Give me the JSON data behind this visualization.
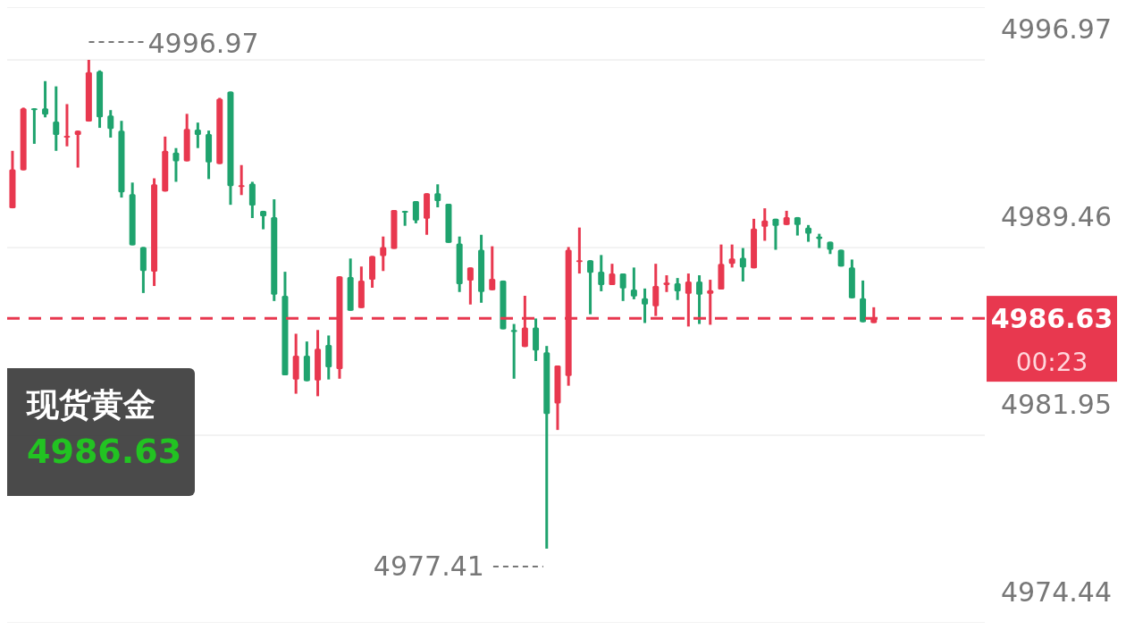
{
  "chart_data": {
    "type": "candlestick",
    "title": "现货黄金",
    "subtitle": "4986.63",
    "categories": [
      null,
      null,
      null,
      null,
      null,
      null,
      null,
      null,
      null,
      null,
      null,
      null,
      null,
      null,
      null,
      null,
      null,
      null,
      null,
      null,
      null,
      null,
      null,
      null,
      null,
      null,
      null,
      null,
      null,
      null,
      null,
      null,
      null,
      null,
      null,
      null,
      null,
      null,
      null,
      null,
      null,
      null,
      null,
      null,
      null,
      null,
      null,
      null,
      null,
      null,
      null,
      null,
      null,
      null,
      null,
      null,
      null,
      null,
      null,
      null,
      null,
      null,
      null,
      null,
      null,
      null,
      null,
      null,
      null,
      null,
      null,
      null,
      null,
      null,
      null,
      null,
      null,
      null,
      null,
      null
    ],
    "ohlc": [
      [
        4991.03,
        4993.33,
        4991.03,
        4992.59
      ],
      [
        4992.55,
        4995.06,
        4992.55,
        4995.03
      ],
      [
        4995.03,
        4995.03,
        4993.61,
        4994.99
      ],
      [
        4995.03,
        4996.12,
        4994.67,
        4994.78
      ],
      [
        4994.5,
        4995.91,
        4993.33,
        4993.97
      ],
      [
        4993.86,
        4995.2,
        4993.51,
        4993.93
      ],
      [
        4993.97,
        4994.14,
        4992.66,
        4994.14
      ],
      [
        4994.5,
        4996.97,
        4994.5,
        4996.48
      ],
      [
        4996.51,
        4996.55,
        4994.25,
        4994.67
      ],
      [
        4994.74,
        4994.96,
        4993.86,
        4994.21
      ],
      [
        4994.14,
        4994.53,
        4991.46,
        4991.67
      ],
      [
        4991.6,
        4992.06,
        4989.55,
        4989.55
      ],
      [
        4989.48,
        4989.48,
        4987.64,
        4988.52
      ],
      [
        4988.49,
        4992.23,
        4987.92,
        4991.99
      ],
      [
        4991.7,
        4993.9,
        4991.7,
        4993.33
      ],
      [
        4993.26,
        4993.44,
        4992.09,
        4992.91
      ],
      [
        4992.91,
        4994.81,
        4992.91,
        4994.21
      ],
      [
        4994.18,
        4994.46,
        4993.44,
        4993.97
      ],
      [
        4994.0,
        4994.14,
        4992.2,
        4992.87
      ],
      [
        4992.8,
        4995.45,
        4992.8,
        4995.41
      ],
      [
        4995.7,
        4995.7,
        4991.17,
        4991.92
      ],
      [
        4991.88,
        4992.76,
        4991.56,
        4991.95
      ],
      [
        4992.02,
        4992.09,
        4990.64,
        4991.14
      ],
      [
        4990.93,
        4990.93,
        4990.19,
        4990.71
      ],
      [
        4990.68,
        4991.39,
        4987.32,
        4987.57
      ],
      [
        4987.53,
        4988.49,
        4984.35,
        4984.35
      ],
      [
        4984.18,
        4986.01,
        4983.61,
        4985.13
      ],
      [
        4985.13,
        4985.7,
        4984.11,
        4984.11
      ],
      [
        4984.14,
        4986.16,
        4983.51,
        4985.41
      ],
      [
        4985.56,
        4985.94,
        4984.18,
        4984.67
      ],
      [
        4984.6,
        4988.31,
        4984.21,
        4988.31
      ],
      [
        4988.28,
        4989.02,
        4986.93,
        4986.93
      ],
      [
        4987.04,
        4988.7,
        4987.04,
        4988.14
      ],
      [
        4988.17,
        4989.12,
        4987.85,
        4989.12
      ],
      [
        4989.12,
        4989.9,
        4988.52,
        4989.48
      ],
      [
        4989.41,
        4990.96,
        4989.41,
        4990.96
      ],
      [
        4990.93,
        4990.93,
        4990.33,
        4990.86
      ],
      [
        4991.32,
        4991.32,
        4990.43,
        4990.54
      ],
      [
        4990.61,
        4991.63,
        4989.97,
        4991.63
      ],
      [
        4991.63,
        4991.99,
        4991.07,
        4991.32
      ],
      [
        4991.21,
        4991.21,
        4989.65,
        4989.65
      ],
      [
        4989.62,
        4989.9,
        4987.68,
        4987.99
      ],
      [
        4988.14,
        4988.66,
        4987.18,
        4988.66
      ],
      [
        4989.37,
        4989.97,
        4987.25,
        4987.68
      ],
      [
        4987.75,
        4989.51,
        4987.75,
        4988.21
      ],
      [
        4988.14,
        4988.14,
        4986.19,
        4986.19
      ],
      [
        4986.16,
        4986.4,
        4984.21,
        4986.08
      ],
      [
        4985.48,
        4987.53,
        4985.48,
        4986.26
      ],
      [
        4986.26,
        4986.62,
        4984.92,
        4985.34
      ],
      [
        4985.27,
        4985.52,
        4977.41,
        4982.8
      ],
      [
        4983.22,
        4984.74,
        4982.16,
        4984.74
      ],
      [
        4984.32,
        4989.48,
        4983.93,
        4989.37
      ],
      [
        4988.88,
        4990.26,
        4988.42,
        4988.95
      ],
      [
        4988.95,
        4988.95,
        4986.79,
        4988.45
      ],
      [
        4988.49,
        4989.16,
        4987.71,
        4987.96
      ],
      [
        4987.96,
        4988.81,
        4987.96,
        4988.42
      ],
      [
        4988.42,
        4988.42,
        4987.32,
        4987.82
      ],
      [
        4987.78,
        4988.66,
        4987.39,
        4987.5
      ],
      [
        4987.43,
        4987.82,
        4986.44,
        4987.18
      ],
      [
        4987.11,
        4988.81,
        4986.72,
        4987.92
      ],
      [
        4987.96,
        4988.35,
        4987.68,
        4988.06
      ],
      [
        4988.03,
        4988.24,
        4987.36,
        4987.71
      ],
      [
        4987.61,
        4988.42,
        4986.3,
        4988.1
      ],
      [
        4988.1,
        4988.35,
        4986.4,
        4987.57
      ],
      [
        4987.61,
        4988.17,
        4986.37,
        4987.75
      ],
      [
        4987.78,
        4989.58,
        4987.78,
        4988.81
      ],
      [
        4988.81,
        4989.58,
        4988.66,
        4989.02
      ],
      [
        4989.05,
        4989.44,
        4988.1,
        4988.66
      ],
      [
        4988.63,
        4990.61,
        4988.63,
        4990.22
      ],
      [
        4990.29,
        4991.03,
        4989.73,
        4990.54
      ],
      [
        4990.61,
        4990.61,
        4989.37,
        4990.33
      ],
      [
        4990.36,
        4990.93,
        4990.36,
        4990.68
      ],
      [
        4990.68,
        4990.68,
        4989.94,
        4990.36
      ],
      [
        4990.26,
        4990.36,
        4989.69,
        4990.01
      ],
      [
        4989.9,
        4990.01,
        4989.44,
        4989.8
      ],
      [
        4989.69,
        4989.69,
        4989.2,
        4989.37
      ],
      [
        4989.37,
        4989.37,
        4988.7,
        4988.7
      ],
      [
        4988.66,
        4988.98,
        4987.43,
        4987.43
      ],
      [
        4987.43,
        4988.14,
        4986.47,
        4986.47
      ],
      [
        4986.44,
        4987.07,
        4986.44,
        4986.63
      ]
    ],
    "colors": [
      "#e8384f",
      "#e8384f",
      "#1fa36e",
      "#1fa36e",
      "#1fa36e",
      "#e8384f",
      "#e8384f",
      "#e8384f",
      "#1fa36e",
      "#1fa36e",
      "#1fa36e",
      "#1fa36e",
      "#1fa36e",
      "#e8384f",
      "#e8384f",
      "#1fa36e",
      "#e8384f",
      "#1fa36e",
      "#1fa36e",
      "#e8384f",
      "#1fa36e",
      "#e8384f",
      "#1fa36e",
      "#1fa36e",
      "#1fa36e",
      "#1fa36e",
      "#e8384f",
      "#1fa36e",
      "#e8384f",
      "#1fa36e",
      "#e8384f",
      "#1fa36e",
      "#e8384f",
      "#e8384f",
      "#e8384f",
      "#e8384f",
      "#1fa36e",
      "#1fa36e",
      "#e8384f",
      "#1fa36e",
      "#1fa36e",
      "#1fa36e",
      "#e8384f",
      "#1fa36e",
      "#e8384f",
      "#1fa36e",
      "#1fa36e",
      "#e8384f",
      "#1fa36e",
      "#1fa36e",
      "#e8384f",
      "#e8384f",
      "#e8384f",
      "#1fa36e",
      "#1fa36e",
      "#e8384f",
      "#1fa36e",
      "#1fa36e",
      "#1fa36e",
      "#e8384f",
      "#e8384f",
      "#1fa36e",
      "#e8384f",
      "#1fa36e",
      "#e8384f",
      "#e8384f",
      "#e8384f",
      "#1fa36e",
      "#e8384f",
      "#e8384f",
      "#1fa36e",
      "#e8384f",
      "#1fa36e",
      "#1fa36e",
      "#1fa36e",
      "#1fa36e",
      "#1fa36e",
      "#1fa36e",
      "#1fa36e",
      "#e8384f"
    ],
    "ylim": [
      4974.44,
      4999.08
    ],
    "yticks": [
      4996.97,
      4989.46,
      4981.95,
      4974.44
    ],
    "grid": "y",
    "tick_labels": "y",
    "ref_lines": [
      {
        "axis": "y",
        "value": 4986.63,
        "label": "4986.63",
        "color": "#e8384f",
        "line_style": "dashed"
      }
    ],
    "annotations": [
      "4996.97",
      "4977.41",
      "00:23"
    ]
  }
}
